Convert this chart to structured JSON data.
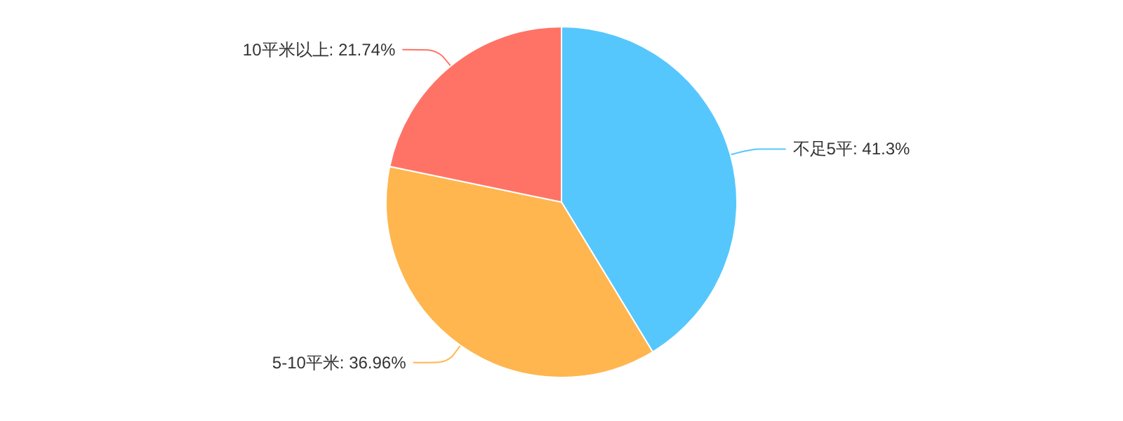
{
  "chart_data": {
    "type": "pie",
    "categories": [
      "不足5平",
      "5-10平米",
      "10平米以上"
    ],
    "values": [
      41.3,
      36.96,
      21.74
    ],
    "value_labels": [
      "41.3%",
      "36.96%",
      "21.74%"
    ],
    "colors": [
      "#56c7fd",
      "#ffb64f",
      "#ff7366"
    ],
    "legend": false
  }
}
